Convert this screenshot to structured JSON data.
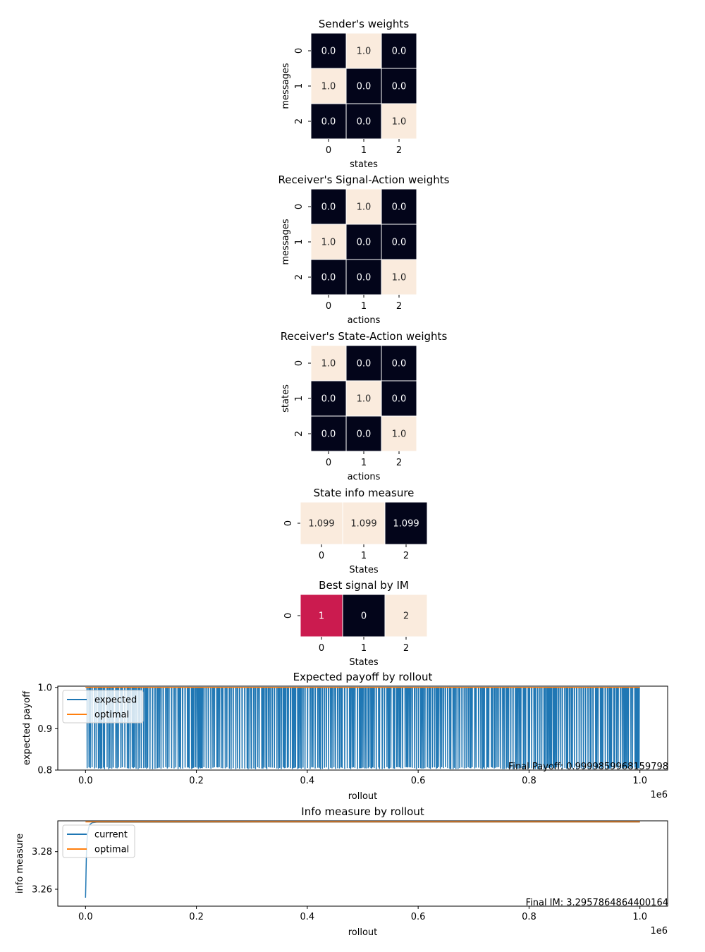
{
  "colors": {
    "dark": "#03051a",
    "light": "#faebdd",
    "mid": "#cb1b4f",
    "expected_line": "#1f77b4",
    "optimal_line": "#ff7f0e"
  },
  "chart_data": [
    {
      "type": "heatmap",
      "title": "Sender's weights",
      "xlabel": "states",
      "ylabel": "messages",
      "x_ticks": [
        "0",
        "1",
        "2"
      ],
      "y_ticks": [
        "0",
        "1",
        "2"
      ],
      "values": [
        [
          0.0,
          1.0,
          0.0
        ],
        [
          1.0,
          0.0,
          0.0
        ],
        [
          0.0,
          0.0,
          1.0
        ]
      ],
      "labels": [
        [
          "0.0",
          "1.0",
          "0.0"
        ],
        [
          "1.0",
          "0.0",
          "0.0"
        ],
        [
          "0.0",
          "0.0",
          "1.0"
        ]
      ]
    },
    {
      "type": "heatmap",
      "title": "Receiver's Signal-Action weights",
      "xlabel": "actions",
      "ylabel": "messages",
      "x_ticks": [
        "0",
        "1",
        "2"
      ],
      "y_ticks": [
        "0",
        "1",
        "2"
      ],
      "values": [
        [
          0.0,
          1.0,
          0.0
        ],
        [
          1.0,
          0.0,
          0.0
        ],
        [
          0.0,
          0.0,
          1.0
        ]
      ],
      "labels": [
        [
          "0.0",
          "1.0",
          "0.0"
        ],
        [
          "1.0",
          "0.0",
          "0.0"
        ],
        [
          "0.0",
          "0.0",
          "1.0"
        ]
      ]
    },
    {
      "type": "heatmap",
      "title": "Receiver's State-Action weights",
      "xlabel": "actions",
      "ylabel": "states",
      "x_ticks": [
        "0",
        "1",
        "2"
      ],
      "y_ticks": [
        "0",
        "1",
        "2"
      ],
      "values": [
        [
          1.0,
          0.0,
          0.0
        ],
        [
          0.0,
          1.0,
          0.0
        ],
        [
          0.0,
          0.0,
          1.0
        ]
      ],
      "labels": [
        [
          "1.0",
          "0.0",
          "0.0"
        ],
        [
          "0.0",
          "1.0",
          "0.0"
        ],
        [
          "0.0",
          "0.0",
          "1.0"
        ]
      ]
    },
    {
      "type": "heatmap",
      "title": "State info measure",
      "xlabel": "States",
      "ylabel": "",
      "x_ticks": [
        "0",
        "1",
        "2"
      ],
      "y_ticks": [
        "0"
      ],
      "values": [
        [
          1.0,
          1.0,
          0.0
        ]
      ],
      "labels": [
        [
          "1.099",
          "1.099",
          "1.099"
        ]
      ]
    },
    {
      "type": "heatmap",
      "title": "Best signal by IM",
      "xlabel": "States",
      "ylabel": "",
      "x_ticks": [
        "0",
        "1",
        "2"
      ],
      "y_ticks": [
        "0"
      ],
      "values": [
        [
          0.5,
          0.0,
          1.0
        ]
      ],
      "labels": [
        [
          "1",
          "0",
          "2"
        ]
      ]
    },
    {
      "type": "line",
      "title": "Expected payoff by rollout",
      "xlabel": "rollout",
      "ylabel": "expected payoff",
      "x_offset_label": "1e6",
      "xlim": [
        -0.05,
        1.05
      ],
      "ylim": [
        0.8,
        1.003
      ],
      "x_ticks": [
        0.0,
        0.2,
        0.4,
        0.6,
        0.8,
        1.0
      ],
      "x_tick_labels": [
        "0.0",
        "0.2",
        "0.4",
        "0.6",
        "0.8",
        "1.0"
      ],
      "y_ticks": [
        0.8,
        0.9,
        1.0
      ],
      "y_tick_labels": [
        "0.8",
        "0.9",
        "1.0"
      ],
      "legend": "upper left",
      "series": [
        {
          "name": "expected",
          "style": "oscillating",
          "x_range": [
            0.0,
            1.0
          ],
          "high": 1.0,
          "low": 0.808
        },
        {
          "name": "optimal",
          "x": [
            0.0,
            1.0
          ],
          "y": [
            1.0,
            1.0
          ]
        }
      ],
      "annotation": "Final Payoff: 0.9999859968159798"
    },
    {
      "type": "line",
      "title": "Info measure by rollout",
      "xlabel": "rollout",
      "ylabel": "info measure",
      "x_offset_label": "1e6",
      "xlim": [
        -0.05,
        1.05
      ],
      "ylim": [
        3.251,
        3.2964
      ],
      "x_ticks": [
        0.0,
        0.2,
        0.4,
        0.6,
        0.8,
        1.0
      ],
      "x_tick_labels": [
        "0.0",
        "0.2",
        "0.4",
        "0.6",
        "0.8",
        "1.0"
      ],
      "y_ticks": [
        3.26,
        3.28
      ],
      "y_tick_labels": [
        "3.26",
        "3.28"
      ],
      "legend": "upper left",
      "series": [
        {
          "name": "current",
          "x": [
            0.0,
            0.0005,
            0.001,
            0.0015,
            0.002,
            0.003,
            0.004,
            0.006,
            0.008,
            0.012,
            0.02,
            1.0
          ],
          "y": [
            3.2555,
            3.262,
            3.27,
            3.277,
            3.282,
            3.287,
            3.29,
            3.293,
            3.2945,
            3.2954,
            3.2957,
            3.2958
          ]
        },
        {
          "name": "optimal",
          "x": [
            0.0,
            1.0
          ],
          "y": [
            3.29584,
            3.29584
          ]
        }
      ],
      "annotation": "Final IM: 3.2957864864400164"
    }
  ]
}
